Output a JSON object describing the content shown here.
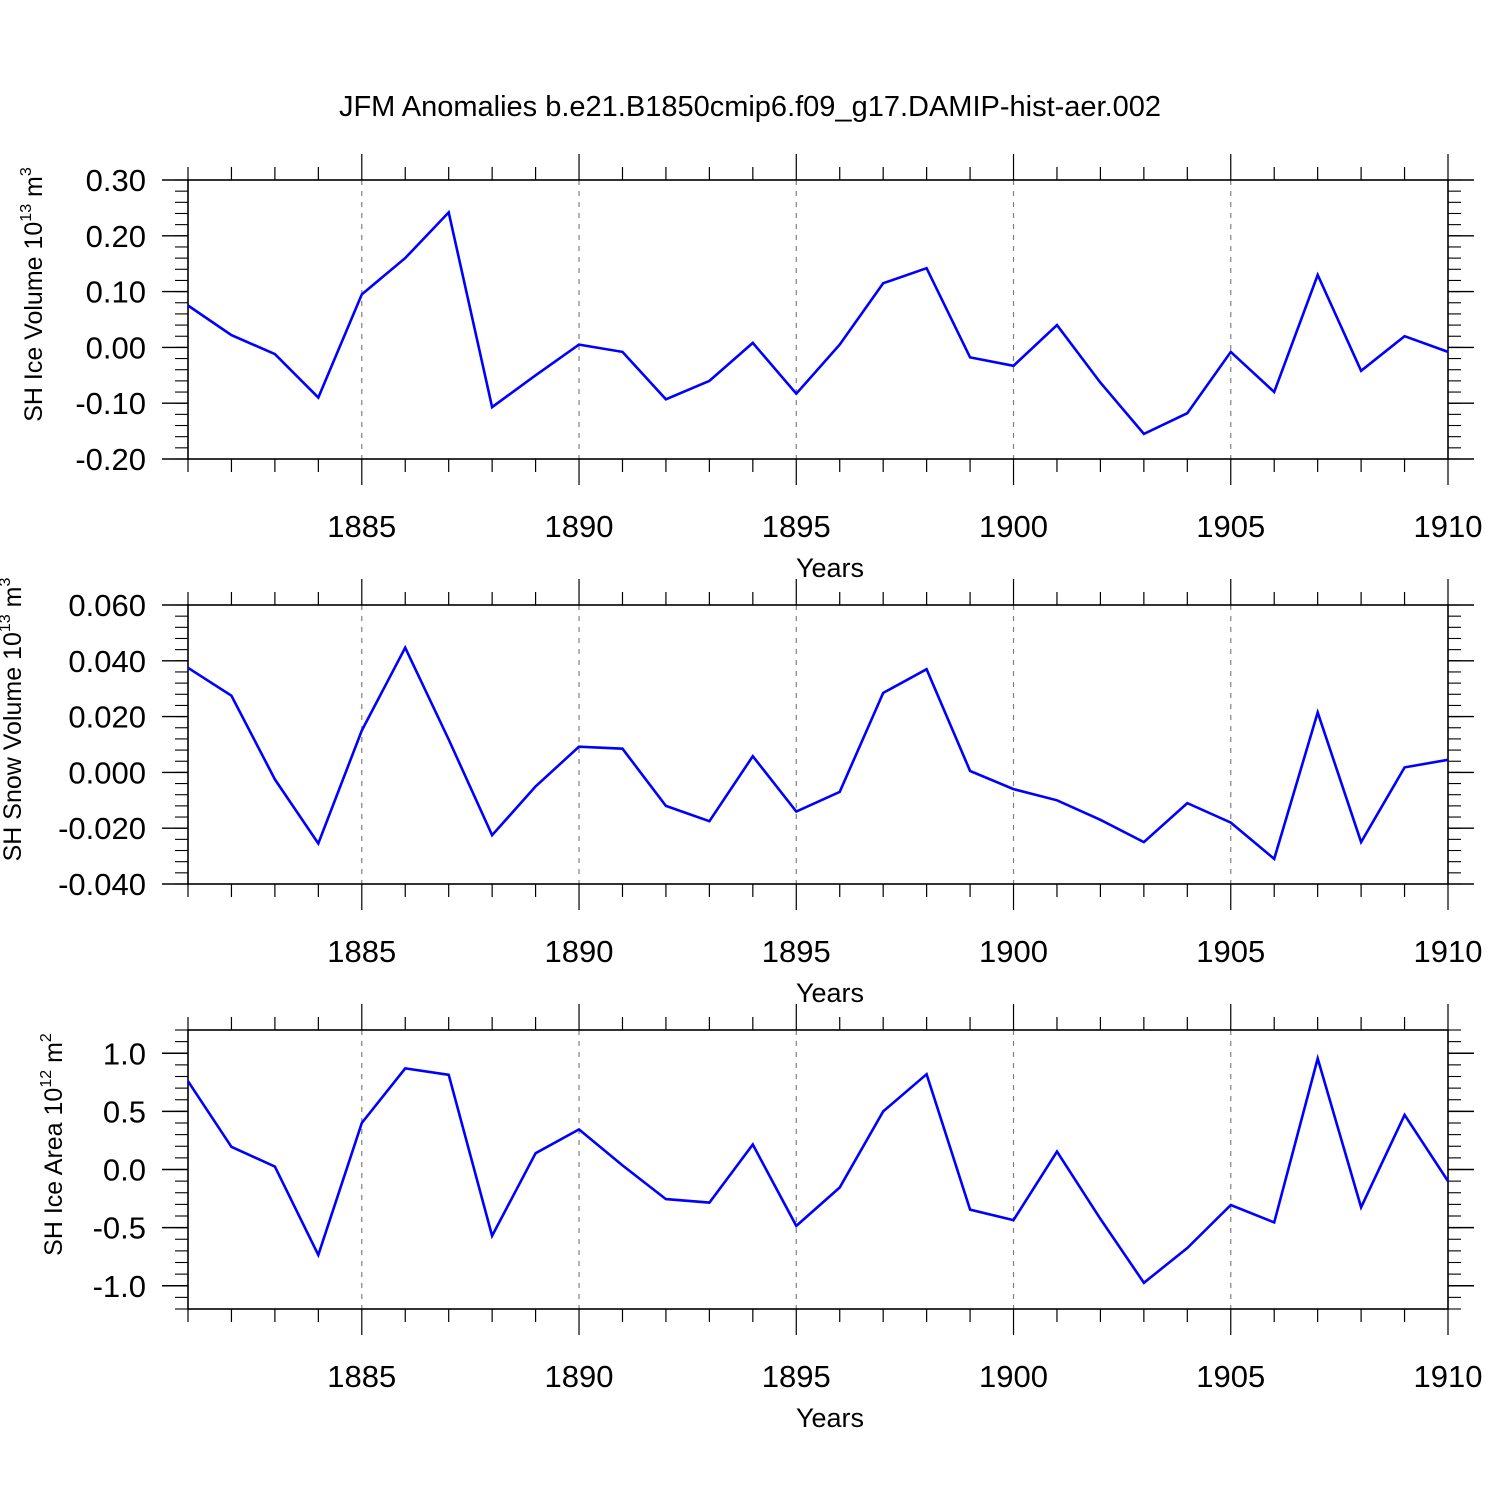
{
  "title": "JFM Anomalies b.e21.B1850cmip6.f09_g17.DAMIP-hist-aer.002",
  "chart_data": [
    {
      "type": "line",
      "xlabel": "Years",
      "ylabel": {
        "text": "SH Ice Volume 10",
        "exp": "13",
        "unit": " m",
        "unit_exp": "3"
      },
      "xlim": [
        1881,
        1910
      ],
      "ylim": [
        -0.2,
        0.3
      ],
      "xticks": [
        1885,
        1890,
        1895,
        1900,
        1905,
        1910
      ],
      "xtick_labels": [
        "1885",
        "1890",
        "1895",
        "1900",
        "1905",
        "1910"
      ],
      "yticks": [
        0.3,
        0.2,
        0.1,
        0.0,
        -0.1,
        -0.2
      ],
      "ytick_labels": [
        "0.30",
        "0.20",
        "0.10",
        "0.00",
        "-0.10",
        "-0.20"
      ],
      "color": "#0000ff",
      "x": [
        1881,
        1882,
        1883,
        1884,
        1885,
        1886,
        1887,
        1888,
        1889,
        1890,
        1891,
        1892,
        1893,
        1894,
        1895,
        1896,
        1897,
        1898,
        1899,
        1900,
        1901,
        1902,
        1903,
        1904,
        1905,
        1906,
        1907,
        1908,
        1909,
        1910
      ],
      "values": [
        0.075,
        0.022,
        -0.012,
        -0.09,
        0.095,
        0.16,
        0.242,
        -0.107,
        -0.05,
        0.005,
        -0.008,
        -0.093,
        -0.06,
        0.008,
        -0.083,
        0.005,
        0.115,
        0.142,
        -0.018,
        -0.033,
        0.04,
        -0.063,
        -0.155,
        -0.118,
        -0.008,
        -0.08,
        0.13,
        -0.042,
        0.02,
        -0.008
      ]
    },
    {
      "type": "line",
      "xlabel": "Years",
      "ylabel": {
        "text": "SH Snow Volume 10",
        "exp": "13",
        "unit": " m",
        "unit_exp": "3"
      },
      "xlim": [
        1881,
        1910
      ],
      "ylim": [
        -0.04,
        0.06
      ],
      "xticks": [
        1885,
        1890,
        1895,
        1900,
        1905,
        1910
      ],
      "xtick_labels": [
        "1885",
        "1890",
        "1895",
        "1900",
        "1905",
        "1910"
      ],
      "yticks": [
        0.06,
        0.04,
        0.02,
        0.0,
        -0.02,
        -0.04
      ],
      "ytick_labels": [
        "0.060",
        "0.040",
        "0.020",
        "0.000",
        "-0.020",
        "-0.040"
      ],
      "color": "#0000ff",
      "x": [
        1881,
        1882,
        1883,
        1884,
        1885,
        1886,
        1887,
        1888,
        1889,
        1890,
        1891,
        1892,
        1893,
        1894,
        1895,
        1896,
        1897,
        1898,
        1899,
        1900,
        1901,
        1902,
        1903,
        1904,
        1905,
        1906,
        1907,
        1908,
        1909,
        1910
      ],
      "values": [
        0.0375,
        0.0275,
        -0.0025,
        -0.0255,
        0.015,
        0.0447,
        0.0118,
        -0.0225,
        -0.005,
        0.0092,
        0.0085,
        -0.012,
        -0.0175,
        0.0058,
        -0.014,
        -0.007,
        0.0285,
        0.037,
        0.0005,
        -0.006,
        -0.01,
        -0.017,
        -0.025,
        -0.011,
        -0.018,
        -0.031,
        0.0215,
        -0.025,
        0.0018,
        0.0045
      ]
    },
    {
      "type": "line",
      "xlabel": "Years",
      "ylabel": {
        "text": "SH Ice Area 10",
        "exp": "12",
        "unit": " m",
        "unit_exp": "2"
      },
      "xlim": [
        1881,
        1910
      ],
      "ylim": [
        -1.2,
        1.2
      ],
      "xticks": [
        1885,
        1890,
        1895,
        1900,
        1905,
        1910
      ],
      "xtick_labels": [
        "1885",
        "1890",
        "1895",
        "1900",
        "1905",
        "1910"
      ],
      "yticks": [
        1.0,
        0.5,
        0.0,
        -0.5,
        -1.0
      ],
      "ytick_labels": [
        "1.0",
        "0.5",
        "0.0",
        "-0.5",
        "-1.0"
      ],
      "color": "#0000ff",
      "x": [
        1881,
        1882,
        1883,
        1884,
        1885,
        1886,
        1887,
        1888,
        1889,
        1890,
        1891,
        1892,
        1893,
        1894,
        1895,
        1896,
        1897,
        1898,
        1899,
        1900,
        1901,
        1902,
        1903,
        1904,
        1905,
        1906,
        1907,
        1908,
        1909,
        1910
      ],
      "values": [
        0.76,
        0.195,
        0.025,
        -0.735,
        0.4,
        0.87,
        0.815,
        -0.57,
        0.14,
        0.345,
        0.035,
        -0.255,
        -0.285,
        0.215,
        -0.485,
        -0.155,
        0.5,
        0.82,
        -0.345,
        -0.435,
        0.155,
        -0.425,
        -0.975,
        -0.675,
        -0.305,
        -0.455,
        0.955,
        -0.325,
        0.47,
        -0.1
      ]
    }
  ]
}
